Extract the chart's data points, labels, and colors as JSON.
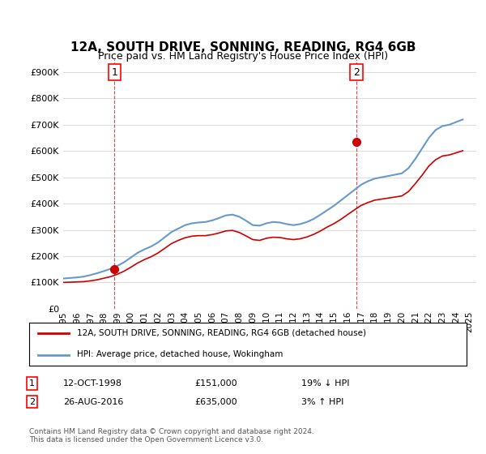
{
  "title": "12A, SOUTH DRIVE, SONNING, READING, RG4 6GB",
  "subtitle": "Price paid vs. HM Land Registry's House Price Index (HPI)",
  "ylabel_values": [
    "£0",
    "£100K",
    "£200K",
    "£300K",
    "£400K",
    "£500K",
    "£600K",
    "£700K",
    "£800K",
    "£900K"
  ],
  "ylim": [
    0,
    900000
  ],
  "yticks": [
    0,
    100000,
    200000,
    300000,
    400000,
    500000,
    600000,
    700000,
    800000,
    900000
  ],
  "hpi_color": "#6699cc",
  "price_color": "#cc0000",
  "sale1_date": "12-OCT-1998",
  "sale1_price": 151000,
  "sale1_label": "19% ↓ HPI",
  "sale2_date": "26-AUG-2016",
  "sale2_price": 635000,
  "sale2_label": "3% ↑ HPI",
  "legend_line1": "12A, SOUTH DRIVE, SONNING, READING, RG4 6GB (detached house)",
  "legend_line2": "HPI: Average price, detached house, Wokingham",
  "footnote": "Contains HM Land Registry data © Crown copyright and database right 2024.\nThis data is licensed under the Open Government Licence v3.0.",
  "background_color": "#ffffff",
  "grid_color": "#dddddd",
  "hpi_x": [
    1995.0,
    1995.5,
    1996.0,
    1996.5,
    1997.0,
    1997.5,
    1998.0,
    1998.5,
    1999.0,
    1999.5,
    2000.0,
    2000.5,
    2001.0,
    2001.5,
    2002.0,
    2002.5,
    2003.0,
    2003.5,
    2004.0,
    2004.5,
    2005.0,
    2005.5,
    2006.0,
    2006.5,
    2007.0,
    2007.5,
    2008.0,
    2008.5,
    2009.0,
    2009.5,
    2010.0,
    2010.5,
    2011.0,
    2011.5,
    2012.0,
    2012.5,
    2013.0,
    2013.5,
    2014.0,
    2014.5,
    2015.0,
    2015.5,
    2016.0,
    2016.5,
    2017.0,
    2017.5,
    2018.0,
    2018.5,
    2019.0,
    2019.5,
    2020.0,
    2020.5,
    2021.0,
    2021.5,
    2022.0,
    2022.5,
    2023.0,
    2023.5,
    2024.0,
    2024.5
  ],
  "hpi_y": [
    115000,
    117000,
    119000,
    122000,
    128000,
    135000,
    143000,
    152000,
    163000,
    177000,
    195000,
    213000,
    226000,
    237000,
    252000,
    272000,
    292000,
    305000,
    318000,
    325000,
    328000,
    330000,
    336000,
    345000,
    355000,
    358000,
    350000,
    335000,
    318000,
    316000,
    325000,
    330000,
    328000,
    322000,
    318000,
    322000,
    330000,
    342000,
    358000,
    375000,
    392000,
    412000,
    432000,
    452000,
    472000,
    485000,
    495000,
    500000,
    505000,
    510000,
    515000,
    535000,
    570000,
    610000,
    650000,
    680000,
    695000,
    700000,
    710000,
    720000
  ],
  "price_x": [
    1995.0,
    1995.5,
    1996.0,
    1996.5,
    1997.0,
    1997.5,
    1998.0,
    1998.5,
    1999.0,
    1999.5,
    2000.0,
    2000.5,
    2001.0,
    2001.5,
    2002.0,
    2002.5,
    2003.0,
    2003.5,
    2004.0,
    2004.5,
    2005.0,
    2005.5,
    2006.0,
    2006.5,
    2007.0,
    2007.5,
    2008.0,
    2008.5,
    2009.0,
    2009.5,
    2010.0,
    2010.5,
    2011.0,
    2011.5,
    2012.0,
    2012.5,
    2013.0,
    2013.5,
    2014.0,
    2014.5,
    2015.0,
    2015.5,
    2016.0,
    2016.5,
    2017.0,
    2017.5,
    2018.0,
    2018.5,
    2019.0,
    2019.5,
    2020.0,
    2020.5,
    2021.0,
    2021.5,
    2022.0,
    2022.5,
    2023.0,
    2023.5,
    2024.0,
    2024.5
  ],
  "price_y": [
    100000,
    101000,
    102000,
    103000,
    106000,
    110000,
    116000,
    122000,
    131000,
    143000,
    158000,
    174000,
    187000,
    198000,
    212000,
    230000,
    248000,
    260000,
    270000,
    276000,
    278000,
    278000,
    282000,
    288000,
    296000,
    298000,
    290000,
    277000,
    263000,
    260000,
    268000,
    272000,
    271000,
    266000,
    263000,
    266000,
    273000,
    283000,
    296000,
    311000,
    324000,
    340000,
    358000,
    376000,
    393000,
    404000,
    413000,
    417000,
    421000,
    425000,
    429000,
    446000,
    476000,
    508000,
    543000,
    567000,
    581000,
    585000,
    593000,
    601000
  ],
  "sale1_x": 1998.78,
  "sale2_x": 2016.65,
  "xtick_years": [
    1995,
    1996,
    1997,
    1998,
    1999,
    2000,
    2001,
    2002,
    2003,
    2004,
    2005,
    2006,
    2007,
    2008,
    2009,
    2010,
    2011,
    2012,
    2013,
    2014,
    2015,
    2016,
    2017,
    2018,
    2019,
    2020,
    2021,
    2022,
    2023,
    2024,
    2025
  ]
}
